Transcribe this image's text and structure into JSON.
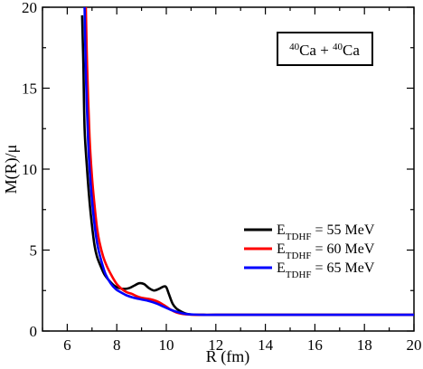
{
  "chart_data": {
    "type": "line",
    "xlabel": "R (fm)",
    "ylabel": "M(R)/μ",
    "xlim": [
      5,
      20
    ],
    "ylim": [
      0,
      20
    ],
    "xticks": [
      6,
      8,
      10,
      12,
      14,
      16,
      18,
      20
    ],
    "yticks": [
      0,
      5,
      10,
      15,
      20
    ],
    "grid": false,
    "legend_position": "right",
    "annotation": {
      "mass_a": "40",
      "element_a": "Ca",
      "plus": " + ",
      "mass_b": "40",
      "element_b": "Ca"
    },
    "series": [
      {
        "name": "E_TDHF = 55 MeV",
        "legend": {
          "base": "E",
          "sub": "TDHF",
          "rest": " = 55 MeV"
        },
        "color": "#000000",
        "x": [
          6.6,
          6.65,
          6.7,
          6.8,
          6.9,
          7.0,
          7.1,
          7.2,
          7.35,
          7.5,
          7.7,
          7.9,
          8.1,
          8.3,
          8.5,
          8.7,
          8.9,
          9.1,
          9.3,
          9.5,
          9.7,
          9.9,
          10.0,
          10.1,
          10.25,
          10.4,
          10.6,
          10.8,
          11.0,
          11.5,
          12,
          14,
          16,
          18,
          20
        ],
        "y": [
          19.5,
          16.5,
          12.5,
          10.0,
          8.0,
          6.5,
          5.3,
          4.6,
          4.0,
          3.5,
          3.1,
          2.8,
          2.65,
          2.6,
          2.65,
          2.8,
          2.95,
          2.9,
          2.65,
          2.5,
          2.6,
          2.75,
          2.7,
          2.3,
          1.7,
          1.4,
          1.2,
          1.07,
          1.02,
          1.0,
          1.0,
          1.0,
          1.0,
          1.0,
          1.0
        ]
      },
      {
        "name": "E_TDHF = 60 MeV",
        "legend": {
          "base": "E",
          "sub": "TDHF",
          "rest": " = 60 MeV"
        },
        "color": "#ff0000",
        "x": [
          6.75,
          6.8,
          6.9,
          7.0,
          7.1,
          7.2,
          7.3,
          7.45,
          7.6,
          7.8,
          8.0,
          8.2,
          8.4,
          8.6,
          8.8,
          9.0,
          9.2,
          9.4,
          9.6,
          9.8,
          10.0,
          10.2,
          10.4,
          10.6,
          10.8,
          11.0,
          11.5,
          12,
          14,
          16,
          18,
          20
        ],
        "y": [
          20.0,
          16.5,
          12.0,
          9.5,
          7.8,
          6.4,
          5.5,
          4.6,
          4.0,
          3.4,
          2.9,
          2.6,
          2.4,
          2.3,
          2.15,
          2.05,
          2.0,
          1.95,
          1.85,
          1.7,
          1.5,
          1.3,
          1.15,
          1.07,
          1.03,
          1.01,
          1.0,
          1.0,
          1.0,
          1.0,
          1.0,
          1.0
        ]
      },
      {
        "name": "E_TDHF = 65 MeV",
        "legend": {
          "base": "E",
          "sub": "TDHF",
          "rest": " = 65 MeV"
        },
        "color": "#0000ff",
        "x": [
          6.7,
          6.75,
          6.85,
          6.95,
          7.05,
          7.15,
          7.25,
          7.4,
          7.55,
          7.75,
          7.95,
          8.15,
          8.4,
          8.7,
          9.0,
          9.3,
          9.6,
          9.9,
          10.2,
          10.5,
          10.8,
          11.1,
          11.5,
          12,
          14,
          16,
          18,
          20
        ],
        "y": [
          20.0,
          16.0,
          11.5,
          9.0,
          7.3,
          6.0,
          5.1,
          4.2,
          3.5,
          2.95,
          2.6,
          2.4,
          2.2,
          2.05,
          1.95,
          1.85,
          1.7,
          1.5,
          1.3,
          1.15,
          1.05,
          1.02,
          1.0,
          1.0,
          1.0,
          1.0,
          1.0,
          1.0
        ]
      }
    ]
  }
}
